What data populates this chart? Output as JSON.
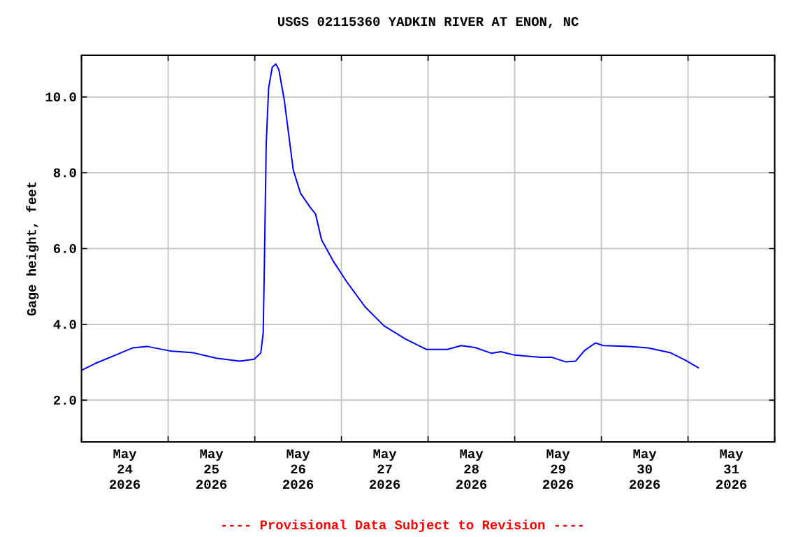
{
  "chart_data": {
    "type": "line",
    "title": "USGS 02115360 YADKIN RIVER AT ENON, NC",
    "ylabel": "Gage height, feet",
    "annotations": [
      "---- Provisional Data Subject to Revision ----"
    ],
    "x": [
      "2026-05-24T00:00",
      "2026-05-24T03:50",
      "2026-05-24T09:10",
      "2026-05-24T14:10",
      "2026-05-24T18:10",
      "2026-05-25T00:30",
      "2026-05-25T07:00",
      "2026-05-25T13:20",
      "2026-05-25T19:50",
      "2026-05-25T23:50",
      "2026-05-26T01:40",
      "2026-05-26T02:20",
      "2026-05-26T02:40",
      "2026-05-26T03:10",
      "2026-05-26T03:50",
      "2026-05-26T04:50",
      "2026-05-26T05:50",
      "2026-05-26T06:40",
      "2026-05-26T08:10",
      "2026-05-26T09:20",
      "2026-05-26T10:40",
      "2026-05-26T12:40",
      "2026-05-26T15:20",
      "2026-05-26T16:50",
      "2026-05-26T18:30",
      "2026-05-26T21:40",
      "2026-05-27T01:30",
      "2026-05-27T06:40",
      "2026-05-27T11:50",
      "2026-05-27T17:50",
      "2026-05-27T23:30",
      "2026-05-28T05:20",
      "2026-05-28T09:10",
      "2026-05-28T13:00",
      "2026-05-28T17:30",
      "2026-05-28T20:10",
      "2026-05-29T00:00",
      "2026-05-29T07:10",
      "2026-05-29T10:20",
      "2026-05-29T14:10",
      "2026-05-29T16:50",
      "2026-05-29T19:20",
      "2026-05-29T22:20",
      "2026-05-30T00:30",
      "2026-05-30T07:40",
      "2026-05-30T12:50",
      "2026-05-30T19:10",
      "2026-05-30T23:10",
      "2026-05-31T03:00"
    ],
    "series": [
      {
        "color": "#0000ff",
        "values": [
          2.79,
          2.97,
          3.18,
          3.38,
          3.42,
          3.3,
          3.25,
          3.11,
          3.03,
          3.08,
          3.25,
          3.77,
          5.62,
          8.75,
          10.23,
          10.78,
          10.87,
          10.72,
          9.92,
          9.06,
          8.07,
          7.46,
          7.09,
          6.91,
          6.23,
          5.68,
          5.12,
          4.45,
          3.96,
          3.61,
          3.34,
          3.34,
          3.44,
          3.39,
          3.24,
          3.28,
          3.19,
          3.13,
          3.13,
          3.01,
          3.03,
          3.31,
          3.51,
          3.44,
          3.42,
          3.38,
          3.25,
          3.06,
          2.85
        ]
      }
    ],
    "xlim": [
      "2026-05-24T00:00",
      "2026-06-01T00:00"
    ],
    "xticks": [
      {
        "value": "2026-05-24T00:00",
        "label": null
      },
      {
        "value": "2026-05-25T00:00",
        "label": null
      },
      {
        "value": "2026-05-26T00:00",
        "label": null
      },
      {
        "value": "2026-05-27T00:00",
        "label": null
      },
      {
        "value": "2026-05-28T00:00",
        "label": null
      },
      {
        "value": "2026-05-29T00:00",
        "label": null
      },
      {
        "value": "2026-05-30T00:00",
        "label": null
      },
      {
        "value": "2026-05-31T00:00",
        "label": null
      },
      {
        "value": "2026-06-01T00:00",
        "label": null
      },
      {
        "value": "2026-05-24T12:00",
        "label": "May 24 2026"
      },
      {
        "value": "2026-05-25T12:00",
        "label": "May 25 2026"
      },
      {
        "value": "2026-05-26T12:00",
        "label": "May 26 2026"
      },
      {
        "value": "2026-05-27T12:00",
        "label": "May 27 2026"
      },
      {
        "value": "2026-05-28T12:00",
        "label": "May 28 2026"
      },
      {
        "value": "2026-05-29T12:00",
        "label": "May 29 2026"
      },
      {
        "value": "2026-05-30T12:00",
        "label": "May 30 2026"
      },
      {
        "value": "2026-05-31T12:00",
        "label": "May 31 2026"
      }
    ],
    "ylim": [
      0.9,
      11.1
    ],
    "yticks": [
      {
        "value": 2,
        "label": "2.0"
      },
      {
        "value": 4,
        "label": "4.0"
      },
      {
        "value": 6,
        "label": "6.0"
      },
      {
        "value": 8,
        "label": "8.0"
      },
      {
        "value": 10,
        "label": "10.0"
      }
    ],
    "grid": true,
    "marker": "none",
    "line_style": "solid"
  }
}
